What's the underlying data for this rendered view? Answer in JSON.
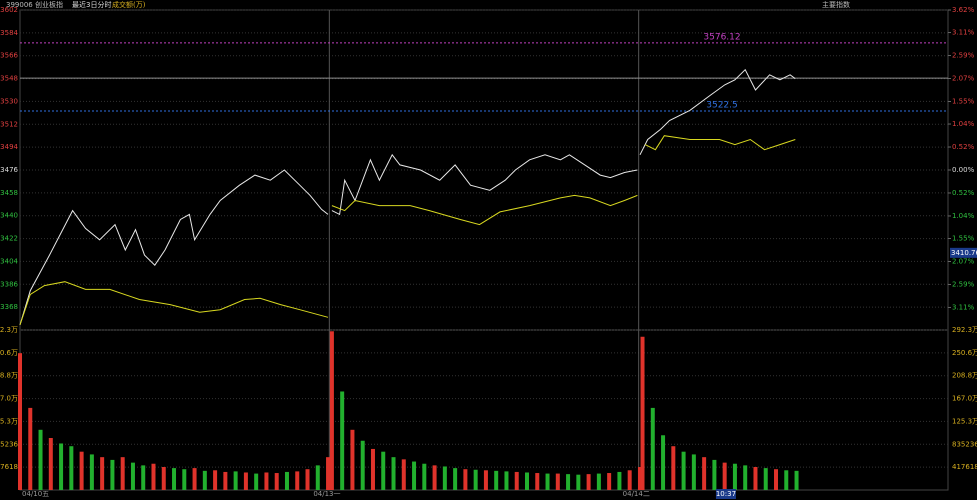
{
  "header": {
    "code_name": "399006 创业板指",
    "mode": "最近3日分时",
    "volume_label": "成交额(万)",
    "menu": "主要指数"
  },
  "chart_data": {
    "type": "intraday",
    "xlim": [
      0,
      723
    ],
    "day_starts": [
      0,
      241,
      482
    ],
    "days": [
      "04/10五",
      "04/13一",
      "04/14二"
    ],
    "ylim": [
      3350,
      3602
    ],
    "yticks": [
      3602,
      3584,
      3566,
      3548,
      3530,
      3512,
      3494,
      3476,
      3458,
      3440,
      3422,
      3404,
      3386,
      3368
    ],
    "y2lim": [
      -3.62,
      3.62
    ],
    "y2ticks": [
      {
        "value": 3.62,
        "label": "3.62%"
      },
      {
        "value": 3.11,
        "label": "3.11%"
      },
      {
        "value": 2.59,
        "label": "2.59%"
      },
      {
        "value": 2.07,
        "label": "2.07%"
      },
      {
        "value": 1.55,
        "label": "1.55%"
      },
      {
        "value": 1.04,
        "label": "1.04%"
      },
      {
        "value": 0.52,
        "label": "0.52%"
      },
      {
        "value": 0,
        "label": "0.00%"
      },
      {
        "value": -0.52,
        "label": "0.52%"
      },
      {
        "value": -1.04,
        "label": "1.04%"
      },
      {
        "value": -1.55,
        "label": "1.55%"
      },
      {
        "value": -2.07,
        "label": "2.07%"
      },
      {
        "value": -2.59,
        "label": "2.59%"
      },
      {
        "value": -3.11,
        "label": "3.11%"
      }
    ],
    "series": [
      {
        "color": "#e8e8e8",
        "x": [
          0,
          8,
          23,
          41,
          51,
          62,
          74,
          82,
          90,
          97,
          105,
          113,
          125,
          132,
          136,
          148,
          156,
          171,
          183,
          195,
          206,
          218,
          226,
          235,
          240,
          241,
          243,
          249,
          253,
          261,
          273,
          280,
          290,
          296,
          312,
          327,
          339,
          351,
          366,
          378,
          386,
          397,
          409,
          421,
          428,
          440,
          452,
          460,
          471,
          481,
          482,
          483,
          489,
          499,
          506,
          522,
          538,
          549,
          557,
          565,
          573,
          584,
          592,
          600,
          604
        ],
        "values": [
          3354,
          3381,
          3409,
          3444,
          3430,
          3421,
          3433,
          3413,
          3429,
          3409,
          3401,
          3413,
          3437,
          3441,
          3421,
          3441,
          3452,
          3464,
          3472,
          3468,
          3476,
          3464,
          3456,
          3445,
          3441,
          null,
          3444,
          3441,
          3468,
          3452,
          3484,
          3468,
          3488,
          3480,
          3476,
          3468,
          3480,
          3464,
          3460,
          3468,
          3476,
          3484,
          3488,
          3484,
          3488,
          3480,
          3472,
          3470,
          3474,
          3476,
          null,
          3488,
          3500,
          3508,
          3515,
          3523,
          3535,
          3543,
          3547,
          3555,
          3539,
          3551,
          3547,
          3551,
          3548
        ]
      },
      {
        "color": "#d8d820",
        "x": [
          0,
          8,
          19,
          35,
          51,
          70,
          93,
          117,
          140,
          156,
          175,
          187,
          203,
          218,
          240,
          241,
          243,
          253,
          261,
          280,
          304,
          319,
          343,
          358,
          374,
          397,
          421,
          432,
          444,
          460,
          471,
          481,
          482,
          487,
          495,
          502,
          522,
          545,
          557,
          569,
          580,
          592,
          604
        ],
        "values": [
          3354,
          3378,
          3385,
          3388,
          3382,
          3382,
          3374,
          3370,
          3364,
          3366,
          3374,
          3375,
          3370,
          3366,
          3360,
          null,
          3448,
          3444,
          3452,
          3448,
          3448,
          3444,
          3437,
          3433,
          3443,
          3448,
          3454,
          3456,
          3454,
          3448,
          3452,
          3456,
          null,
          3496,
          3492,
          3503,
          3500,
          3500,
          3496,
          3500,
          3492,
          3496,
          3500
        ]
      }
    ],
    "hlines": [
      {
        "value": 3576.12,
        "color": "#c040c0"
      },
      {
        "value": 3522.5,
        "color": "#3070e0"
      },
      {
        "value": 3548.4,
        "color": "#909090"
      }
    ],
    "volume": {
      "vlim": [
        0,
        2923326
      ],
      "vticks": [
        {
          "value": 2923326,
          "label": "292.3万"
        },
        {
          "value": 2505708,
          "label": "250.6万"
        },
        {
          "value": 2088090,
          "label": "208.8万"
        },
        {
          "value": 1670472,
          "label": "167.0万"
        },
        {
          "value": 1252854,
          "label": "125.3万"
        },
        835236,
        417618
      ],
      "x": [
        0,
        8,
        16,
        24,
        32,
        40,
        48,
        56,
        64,
        72,
        80,
        88,
        96,
        104,
        112,
        120,
        128,
        136,
        144,
        152,
        160,
        168,
        176,
        184,
        192,
        200,
        208,
        216,
        224,
        232,
        240,
        243,
        251,
        259,
        267,
        275,
        283,
        291,
        299,
        307,
        315,
        323,
        331,
        339,
        347,
        355,
        363,
        371,
        379,
        387,
        395,
        403,
        411,
        419,
        427,
        435,
        443,
        451,
        459,
        467,
        475,
        483,
        485,
        493,
        501,
        509,
        517,
        525,
        533,
        541,
        549,
        557,
        565,
        573,
        581,
        589,
        597,
        605
      ],
      "values": [
        2500000,
        1500000,
        1100000,
        950000,
        850000,
        800000,
        700000,
        650000,
        600000,
        550000,
        600000,
        500000,
        450000,
        480000,
        420000,
        400000,
        380000,
        400000,
        350000,
        360000,
        330000,
        340000,
        320000,
        300000,
        320000,
        310000,
        330000,
        340000,
        380000,
        450000,
        600000,
        2900000,
        1800000,
        1100000,
        900000,
        750000,
        700000,
        600000,
        560000,
        520000,
        480000,
        450000,
        430000,
        400000,
        380000,
        370000,
        360000,
        350000,
        340000,
        330000,
        320000,
        310000,
        300000,
        300000,
        290000,
        280000,
        290000,
        300000,
        310000,
        330000,
        360000,
        420000,
        2800000,
        1500000,
        1000000,
        800000,
        700000,
        650000,
        600000,
        550000,
        500000,
        480000,
        450000,
        420000,
        400000,
        380000,
        360000,
        350000
      ],
      "colors": [
        "#e0332b",
        "#e0332b",
        "#22b02e",
        "#e0332b",
        "#22b02e",
        "#22b02e",
        "#e0332b",
        "#22b02e",
        "#e0332b",
        "#22b02e",
        "#e0332b",
        "#22b02e",
        "#22b02e",
        "#e0332b",
        "#e0332b",
        "#22b02e",
        "#22b02e",
        "#e0332b",
        "#22b02e",
        "#e0332b",
        "#e0332b",
        "#22b02e",
        "#e0332b",
        "#22b02e",
        "#e0332b",
        "#e0332b",
        "#22b02e",
        "#e0332b",
        "#e0332b",
        "#22b02e",
        "#e0332b",
        "#e0332b",
        "#22b02e",
        "#e0332b",
        "#22b02e",
        "#e0332b",
        "#22b02e",
        "#22b02e",
        "#e0332b",
        "#22b02e",
        "#22b02e",
        "#e0332b",
        "#22b02e",
        "#22b02e",
        "#e0332b",
        "#22b02e",
        "#e0332b",
        "#22b02e",
        "#22b02e",
        "#e0332b",
        "#22b02e",
        "#e0332b",
        "#22b02e",
        "#e0332b",
        "#22b02e",
        "#22b02e",
        "#e0332b",
        "#22b02e",
        "#e0332b",
        "#22b02e",
        "#e0332b",
        "#e0332b",
        "#e0332b",
        "#22b02e",
        "#22b02e",
        "#e0332b",
        "#22b02e",
        "#22b02e",
        "#e0332b",
        "#22b02e",
        "#e0332b",
        "#22b02e",
        "#22b02e",
        "#e0332b",
        "#22b02e",
        "#e0332b",
        "#22b02e",
        "#22b02e"
      ]
    },
    "cursor": {
      "x": 550,
      "price": 3410.76,
      "time": "10:37"
    }
  }
}
